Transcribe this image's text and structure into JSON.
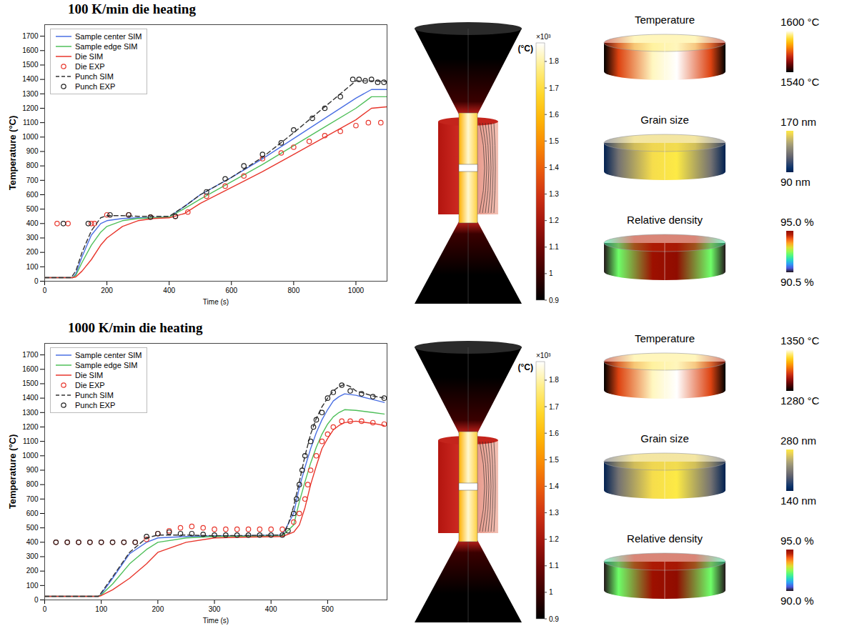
{
  "chart_data": [
    {
      "type": "line",
      "title": "100 K/min die heating",
      "xlabel": "Time (s)",
      "ylabel": "Temperature (°C)",
      "xlim": [
        0,
        1100
      ],
      "xticks": [
        0,
        200,
        400,
        600,
        800,
        1000
      ],
      "ylim": [
        0,
        1780
      ],
      "yticks": [
        0,
        100,
        200,
        300,
        400,
        500,
        600,
        700,
        800,
        900,
        1000,
        1100,
        1200,
        1300,
        1400,
        1500,
        1600,
        1700
      ],
      "grid": false,
      "legend": "top-left",
      "series": [
        {
          "name": "Sample center SIM",
          "type": "line",
          "line_style": "solid",
          "color": "#4a6fe3",
          "x": [
            0,
            90,
            100,
            120,
            150,
            180,
            200,
            250,
            300,
            350,
            400,
            450,
            500,
            600,
            700,
            800,
            900,
            1000,
            1050,
            1100
          ],
          "values": [
            25,
            25,
            50,
            170,
            320,
            400,
            420,
            435,
            440,
            442,
            445,
            520,
            600,
            720,
            850,
            990,
            1130,
            1270,
            1330,
            1330
          ]
        },
        {
          "name": "Sample edge SIM",
          "type": "line",
          "line_style": "solid",
          "color": "#4fbf5a",
          "x": [
            0,
            90,
            100,
            120,
            150,
            180,
            200,
            250,
            300,
            350,
            400,
            450,
            500,
            600,
            700,
            800,
            900,
            1000,
            1050,
            1100
          ],
          "values": [
            25,
            25,
            40,
            130,
            250,
            340,
            380,
            420,
            435,
            440,
            445,
            505,
            570,
            690,
            810,
            940,
            1070,
            1200,
            1280,
            1280
          ]
        },
        {
          "name": "Die SIM",
          "type": "line",
          "line_style": "solid",
          "color": "#e8362c",
          "x": [
            0,
            90,
            100,
            120,
            150,
            180,
            200,
            250,
            300,
            350,
            400,
            450,
            500,
            600,
            700,
            800,
            900,
            1000,
            1050,
            1100
          ],
          "values": [
            25,
            25,
            30,
            70,
            150,
            250,
            300,
            380,
            420,
            435,
            440,
            470,
            540,
            650,
            760,
            880,
            1000,
            1120,
            1200,
            1210
          ]
        },
        {
          "name": "Die EXP",
          "type": "scatter",
          "marker": "circle",
          "color": "#e8362c",
          "x": [
            40,
            75,
            150,
            160,
            200,
            270,
            340,
            420,
            460,
            520,
            580,
            640,
            700,
            760,
            800,
            850,
            900,
            950,
            1000,
            1040,
            1080
          ],
          "values": [
            400,
            400,
            400,
            400,
            460,
            460,
            445,
            450,
            480,
            590,
            660,
            730,
            850,
            890,
            930,
            970,
            1010,
            1040,
            1080,
            1100,
            1100
          ]
        },
        {
          "name": "Punch SIM",
          "type": "line",
          "line_style": "dashed",
          "color": "#333333",
          "x": [
            0,
            85,
            100,
            120,
            150,
            180,
            200,
            250,
            300,
            400,
            450,
            500,
            600,
            700,
            800,
            900,
            950,
            1000,
            1050,
            1100
          ],
          "values": [
            25,
            25,
            70,
            200,
            350,
            440,
            455,
            455,
            450,
            450,
            520,
            600,
            720,
            860,
            1030,
            1210,
            1300,
            1390,
            1390,
            1385
          ]
        },
        {
          "name": "Punch EXP",
          "type": "scatter",
          "marker": "circle",
          "color": "#222222",
          "x": [
            60,
            140,
            210,
            270,
            340,
            420,
            520,
            580,
            640,
            700,
            760,
            800,
            860,
            900,
            950,
            990,
            1010,
            1030,
            1050,
            1070,
            1090
          ],
          "values": [
            400,
            400,
            460,
            460,
            445,
            450,
            620,
            710,
            800,
            880,
            960,
            1050,
            1130,
            1200,
            1280,
            1400,
            1400,
            1390,
            1400,
            1380,
            1380
          ]
        }
      ],
      "colorbar": {
        "unit": "(°C)",
        "multiplier": "×10³",
        "range": [
          0.9,
          1.87
        ],
        "ticks": [
          0.9,
          1,
          1.1,
          1.2,
          1.3,
          1.4,
          1.5,
          1.6,
          1.7,
          1.8
        ]
      },
      "maps": [
        {
          "title": "Temperature",
          "max": {
            "value": 1600,
            "label": "1600 °C"
          },
          "min": {
            "value": 1540,
            "label": "1540 °C"
          }
        },
        {
          "title": "Grain size",
          "max": {
            "value": 170,
            "label": "170 nm"
          },
          "min": {
            "value": 90,
            "label": "90 nm"
          }
        },
        {
          "title": "Relative density",
          "max": {
            "value": 95,
            "label": "95.0 %"
          },
          "min": {
            "value": 90.5,
            "label": "90.5 %"
          }
        }
      ]
    },
    {
      "type": "line",
      "title": "1000 K/min die heating",
      "xlabel": "Time (s)",
      "ylabel": "Temperature (°C)",
      "xlim": [
        0,
        605
      ],
      "xticks": [
        0,
        100,
        200,
        300,
        400,
        500
      ],
      "ylim": [
        0,
        1780
      ],
      "yticks": [
        0,
        100,
        200,
        300,
        400,
        500,
        600,
        700,
        800,
        900,
        1000,
        1100,
        1200,
        1300,
        1400,
        1500,
        1600,
        1700
      ],
      "grid": false,
      "legend": "top-left",
      "series": [
        {
          "name": "Sample center SIM",
          "type": "line",
          "line_style": "solid",
          "color": "#4a6fe3",
          "x": [
            0,
            95,
            100,
            120,
            150,
            180,
            200,
            250,
            300,
            350,
            420,
            440,
            450,
            460,
            470,
            480,
            490,
            500,
            510,
            520,
            530,
            550,
            580,
            600
          ],
          "values": [
            25,
            25,
            40,
            150,
            320,
            400,
            430,
            440,
            445,
            445,
            450,
            600,
            780,
            920,
            1050,
            1160,
            1250,
            1320,
            1380,
            1410,
            1430,
            1420,
            1390,
            1370
          ]
        },
        {
          "name": "Sample edge SIM",
          "type": "line",
          "line_style": "solid",
          "color": "#4fbf5a",
          "x": [
            0,
            95,
            100,
            120,
            150,
            180,
            200,
            250,
            300,
            350,
            420,
            440,
            450,
            460,
            470,
            480,
            490,
            500,
            510,
            520,
            530,
            550,
            580,
            600
          ],
          "values": [
            25,
            25,
            35,
            110,
            250,
            350,
            400,
            430,
            440,
            442,
            445,
            520,
            680,
            820,
            950,
            1060,
            1150,
            1220,
            1270,
            1300,
            1320,
            1315,
            1300,
            1290
          ]
        },
        {
          "name": "Die SIM",
          "type": "line",
          "line_style": "solid",
          "color": "#e8362c",
          "x": [
            0,
            95,
            100,
            120,
            150,
            180,
            200,
            250,
            300,
            350,
            420,
            440,
            450,
            460,
            470,
            480,
            490,
            500,
            510,
            520,
            530,
            550,
            580,
            600
          ],
          "values": [
            25,
            25,
            30,
            70,
            150,
            250,
            330,
            400,
            430,
            435,
            440,
            470,
            520,
            640,
            800,
            930,
            1050,
            1120,
            1180,
            1210,
            1230,
            1240,
            1225,
            1210
          ]
        },
        {
          "name": "Die EXP",
          "type": "scatter",
          "marker": "circle",
          "color": "#e8362c",
          "x": [
            20,
            40,
            60,
            80,
            100,
            120,
            140,
            160,
            180,
            200,
            220,
            240,
            260,
            280,
            300,
            320,
            340,
            360,
            380,
            400,
            420,
            440,
            450,
            460,
            465,
            470,
            480,
            490,
            500,
            510,
            525,
            540,
            560,
            580,
            600
          ],
          "values": [
            400,
            400,
            400,
            400,
            400,
            400,
            400,
            400,
            420,
            460,
            480,
            500,
            510,
            500,
            490,
            490,
            490,
            490,
            490,
            490,
            490,
            540,
            600,
            700,
            800,
            900,
            1000,
            1100,
            1150,
            1200,
            1240,
            1240,
            1240,
            1230,
            1220
          ]
        },
        {
          "name": "Punch SIM",
          "type": "line",
          "line_style": "dashed",
          "color": "#333333",
          "x": [
            0,
            95,
            100,
            120,
            150,
            180,
            200,
            250,
            300,
            420,
            430,
            440,
            450,
            460,
            470,
            480,
            490,
            500,
            510,
            520,
            530,
            540,
            550,
            580,
            600
          ],
          "values": [
            25,
            25,
            50,
            160,
            330,
            430,
            450,
            450,
            445,
            450,
            520,
            650,
            820,
            1000,
            1150,
            1260,
            1340,
            1400,
            1450,
            1480,
            1495,
            1480,
            1450,
            1415,
            1400
          ]
        },
        {
          "name": "Punch EXP",
          "type": "scatter",
          "marker": "circle",
          "color": "#222222",
          "x": [
            20,
            40,
            60,
            80,
            100,
            120,
            140,
            160,
            180,
            200,
            220,
            240,
            260,
            280,
            300,
            320,
            340,
            360,
            380,
            400,
            420,
            430,
            440,
            445,
            450,
            455,
            460,
            470,
            475,
            480,
            490,
            500,
            510,
            525,
            540,
            560,
            580,
            600
          ],
          "values": [
            400,
            400,
            400,
            400,
            400,
            400,
            400,
            400,
            440,
            460,
            470,
            460,
            460,
            455,
            450,
            450,
            450,
            450,
            450,
            450,
            450,
            480,
            600,
            700,
            800,
            900,
            1000,
            1100,
            1200,
            1250,
            1300,
            1400,
            1440,
            1490,
            1450,
            1430,
            1410,
            1400
          ]
        }
      ],
      "colorbar": {
        "unit": "(°C)",
        "multiplier": "×10³",
        "range": [
          0.9,
          1.87
        ],
        "ticks": [
          0.9,
          1,
          1.1,
          1.2,
          1.3,
          1.4,
          1.5,
          1.6,
          1.7,
          1.8
        ]
      },
      "maps": [
        {
          "title": "Temperature",
          "max": {
            "value": 1350,
            "label": "1350 °C"
          },
          "min": {
            "value": 1280,
            "label": "1280 °C"
          }
        },
        {
          "title": "Grain size",
          "max": {
            "value": 280,
            "label": "280 nm"
          },
          "min": {
            "value": 140,
            "label": "140 nm"
          }
        },
        {
          "title": "Relative density",
          "max": {
            "value": 95,
            "label": "95.0 %"
          },
          "min": {
            "value": 90,
            "label": "90.0 %"
          }
        }
      ]
    }
  ]
}
